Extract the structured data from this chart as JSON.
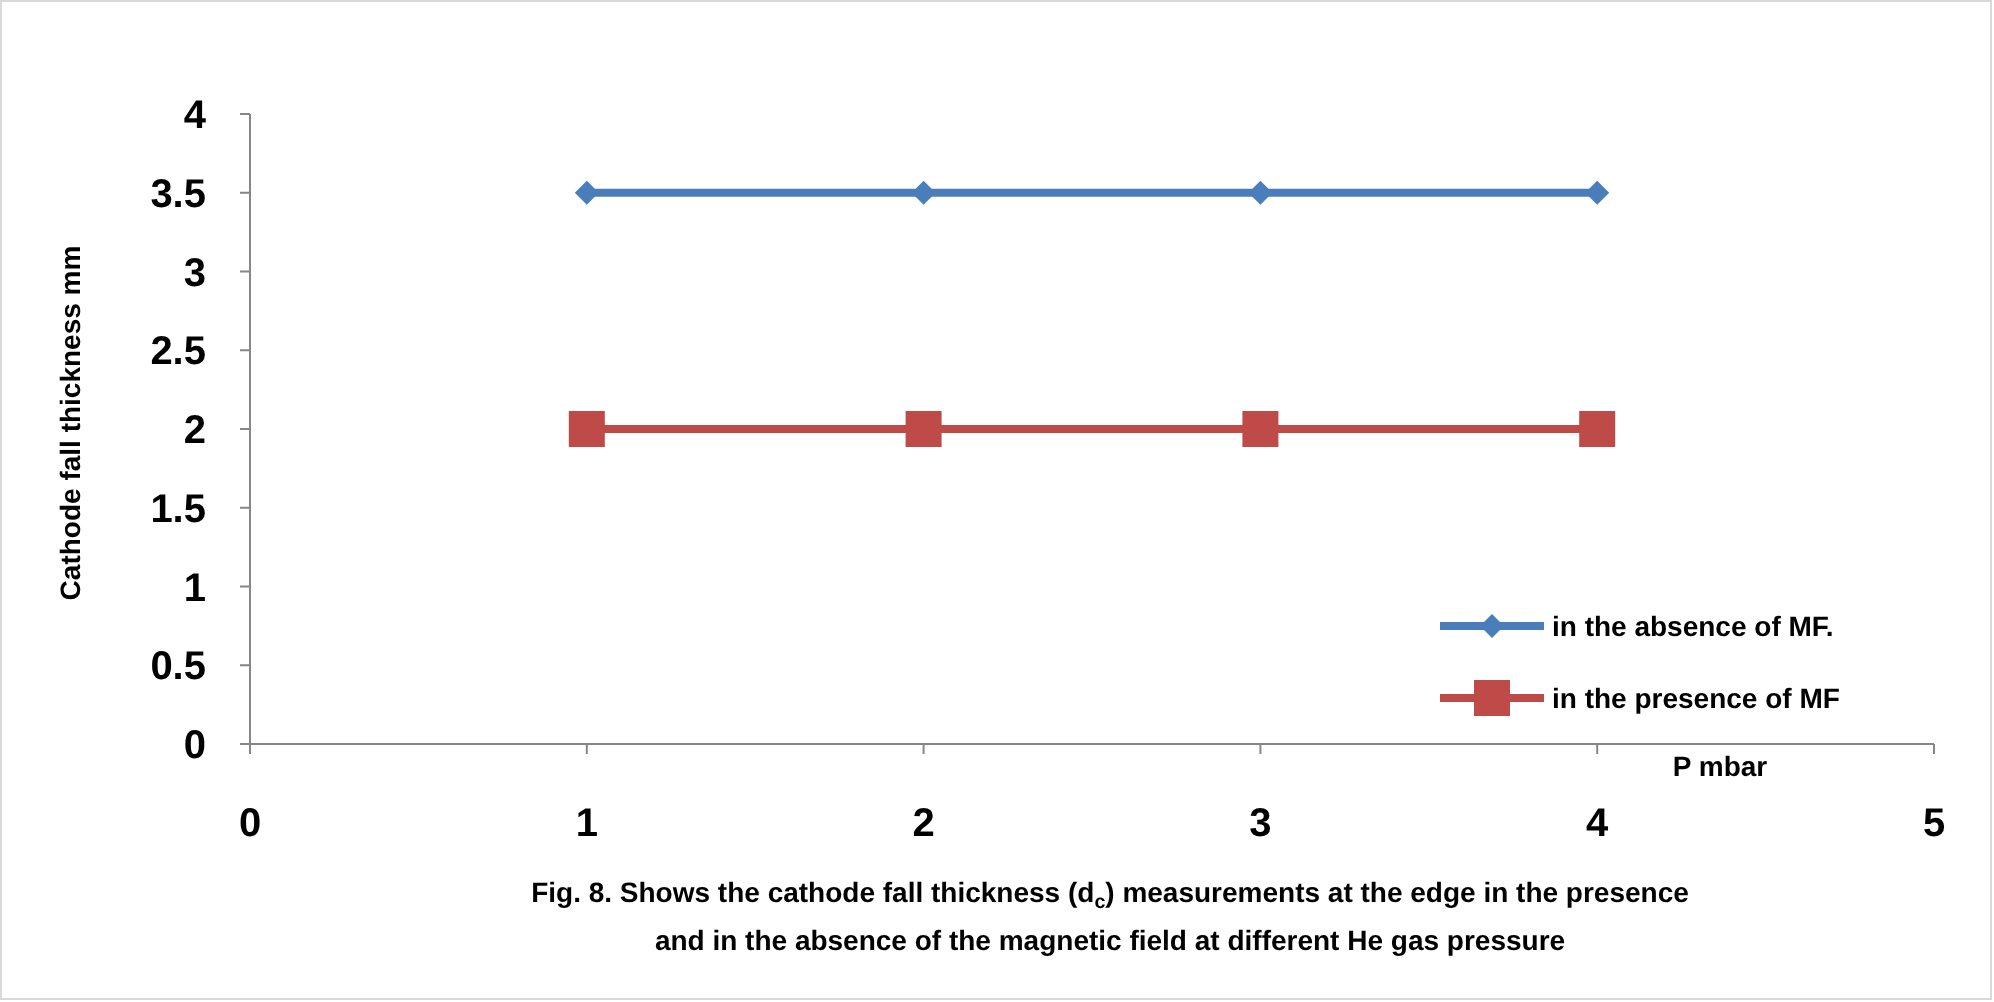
{
  "chart_data": {
    "type": "line",
    "xlabel": "P mbar",
    "ylabel": "Cathode fall thickness mm",
    "x": [
      1,
      2,
      3,
      4
    ],
    "series": [
      {
        "name": "in the absence of MF.",
        "color": "#4a7ebb",
        "values": [
          3.5,
          3.5,
          3.5,
          3.5
        ],
        "marker": "diamond"
      },
      {
        "name": "in the presence of MF",
        "color": "#be4b48",
        "values": [
          2,
          2,
          2,
          2
        ],
        "marker": "square"
      }
    ],
    "xlim": [
      0,
      5
    ],
    "xticks": [
      0,
      1,
      2,
      3,
      4,
      5
    ],
    "ylim": [
      0,
      4
    ],
    "yticks": [
      0,
      0.5,
      1,
      1.5,
      2,
      2.5,
      3,
      3.5,
      4
    ],
    "grid": false,
    "legend": "bottom right",
    "line_style": "solid",
    "annotations": [
      "Fig. 8.  Shows the cathode fall thickness (d$_{c}$) measurements at the edge in the presence",
      "and in the absence of the magnetic field at different He gas pressure"
    ]
  }
}
